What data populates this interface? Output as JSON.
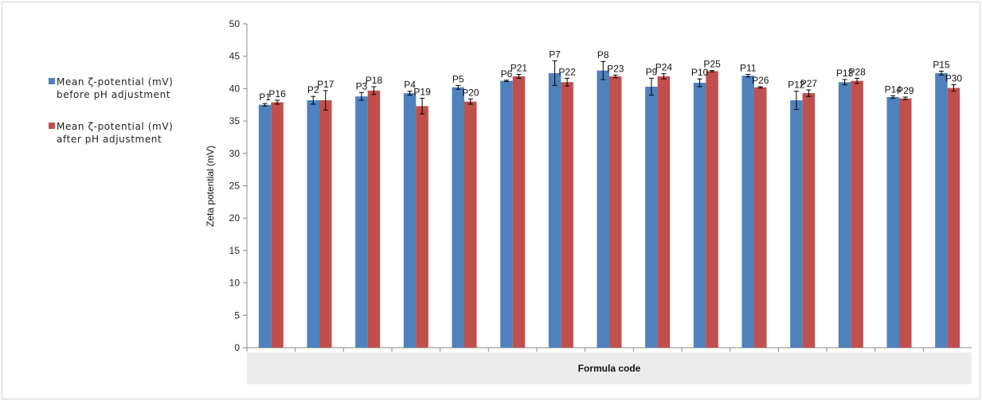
{
  "chart_data": {
    "type": "bar",
    "xlabel": "Formula code",
    "ylabel": "Zeta potential (mV)",
    "ylim": [
      0,
      50
    ],
    "yticks": [
      0,
      5,
      10,
      15,
      20,
      25,
      30,
      35,
      40,
      45,
      50
    ],
    "grid": false,
    "legend_position": "left",
    "series": [
      {
        "name": "Mean  ζ-potential (mV)  before pH adjustment",
        "color": "#4f81bd",
        "labels": [
          "P1",
          "P2",
          "P3",
          "P4",
          "P5",
          "P6",
          "P7",
          "P8",
          "P9",
          "P10",
          "P11",
          "P12",
          "P13",
          "P14",
          "P15"
        ],
        "values": [
          37.5,
          38.2,
          38.8,
          39.3,
          40.2,
          41.2,
          42.4,
          42.8,
          40.3,
          40.9,
          42.0,
          38.2,
          41.0,
          38.7,
          42.4
        ],
        "errors": [
          0.2,
          0.6,
          0.6,
          0.3,
          0.3,
          0.1,
          1.9,
          1.4,
          1.3,
          0.6,
          0.2,
          1.4,
          0.4,
          0.2,
          0.3
        ]
      },
      {
        "name": "Mean  ζ-potential (mV)  after pH adjustment",
        "color": "#c0504d",
        "labels": [
          "P16",
          "P17",
          "P18",
          "P19",
          "P20",
          "P21",
          "P22",
          "P23",
          "P24",
          "P25",
          "P26",
          "P27",
          "P28",
          "P29",
          "P30"
        ],
        "values": [
          37.9,
          38.2,
          39.7,
          37.3,
          38.0,
          41.9,
          41.0,
          41.9,
          41.9,
          42.7,
          40.2,
          39.3,
          41.2,
          38.5,
          40.1
        ],
        "errors": [
          0.3,
          1.5,
          0.6,
          1.2,
          0.4,
          0.3,
          0.6,
          0.2,
          0.4,
          0.1,
          0.1,
          0.5,
          0.4,
          0.2,
          0.5
        ]
      }
    ]
  }
}
